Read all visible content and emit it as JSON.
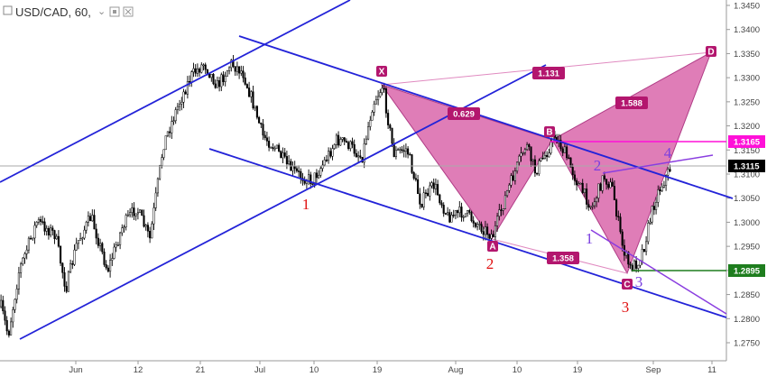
{
  "header": {
    "symbol": "USD/CAD, 60,",
    "dropdown_glyph": "⌄",
    "icons": [
      "settings-icon",
      "close-icon"
    ]
  },
  "colors": {
    "candle": "#000000",
    "channel": "#2323d8",
    "pattern_fill": "#d966aa",
    "pattern_stroke": "#b03c86",
    "pattern_label_bg": "#b3166e",
    "level_line_magenta": "#ff10d8",
    "level_line_green": "#1e7d1e",
    "current_price_bg": "#000000",
    "wave_red": "#e01010",
    "wave_purple": "#7a3fe0"
  },
  "chart_data": {
    "type": "candlestick",
    "instrument": "USD/CAD",
    "timeframe": "60",
    "x_ticks": [
      "Jun",
      "12",
      "21",
      "Jul",
      "10",
      "19",
      "Aug",
      "10",
      "19",
      "Sep",
      "11"
    ],
    "y_ticks": [
      "1.3450",
      "1.3400",
      "1.3350",
      "1.3300",
      "1.3250",
      "1.3200",
      "1.3150",
      "1.3100",
      "1.3050",
      "1.3000",
      "1.2950",
      "1.2900",
      "1.2850",
      "1.2800",
      "1.2750"
    ],
    "ylim": [
      1.2725,
      1.346
    ],
    "price_labels": [
      {
        "value": "1.3165",
        "kind": "magenta"
      },
      {
        "value": "1.3115",
        "kind": "current"
      },
      {
        "value": "1.2895",
        "kind": "green"
      }
    ],
    "pattern_points": [
      "X",
      "A",
      "B",
      "C",
      "D"
    ],
    "ratios": [
      "0.629",
      "1.131",
      "1.588",
      "1.358"
    ],
    "wave_labels_red": [
      "1",
      "2",
      "3"
    ],
    "wave_labels_purple": [
      "1",
      "2",
      "3",
      "4"
    ]
  }
}
